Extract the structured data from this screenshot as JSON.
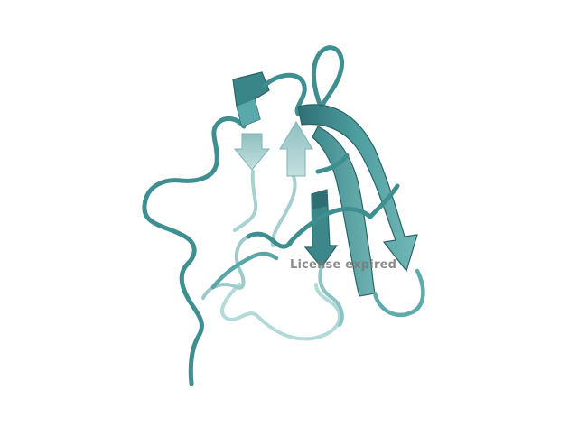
{
  "viewer": {
    "watermark": "License expired"
  },
  "colors": {
    "background": "#ffffff",
    "cartoon": "#4a9a9a",
    "cartoon_dark": "#2f6f73",
    "cartoon_light": "#9fcccc",
    "cartoon_faded": "#b7dcdc"
  },
  "structure": {
    "representation": "cartoon",
    "elements": [
      "loop",
      "beta-strand",
      "beta-strand",
      "beta-strand",
      "beta-strand",
      "beta-strand",
      "short-helix"
    ]
  }
}
